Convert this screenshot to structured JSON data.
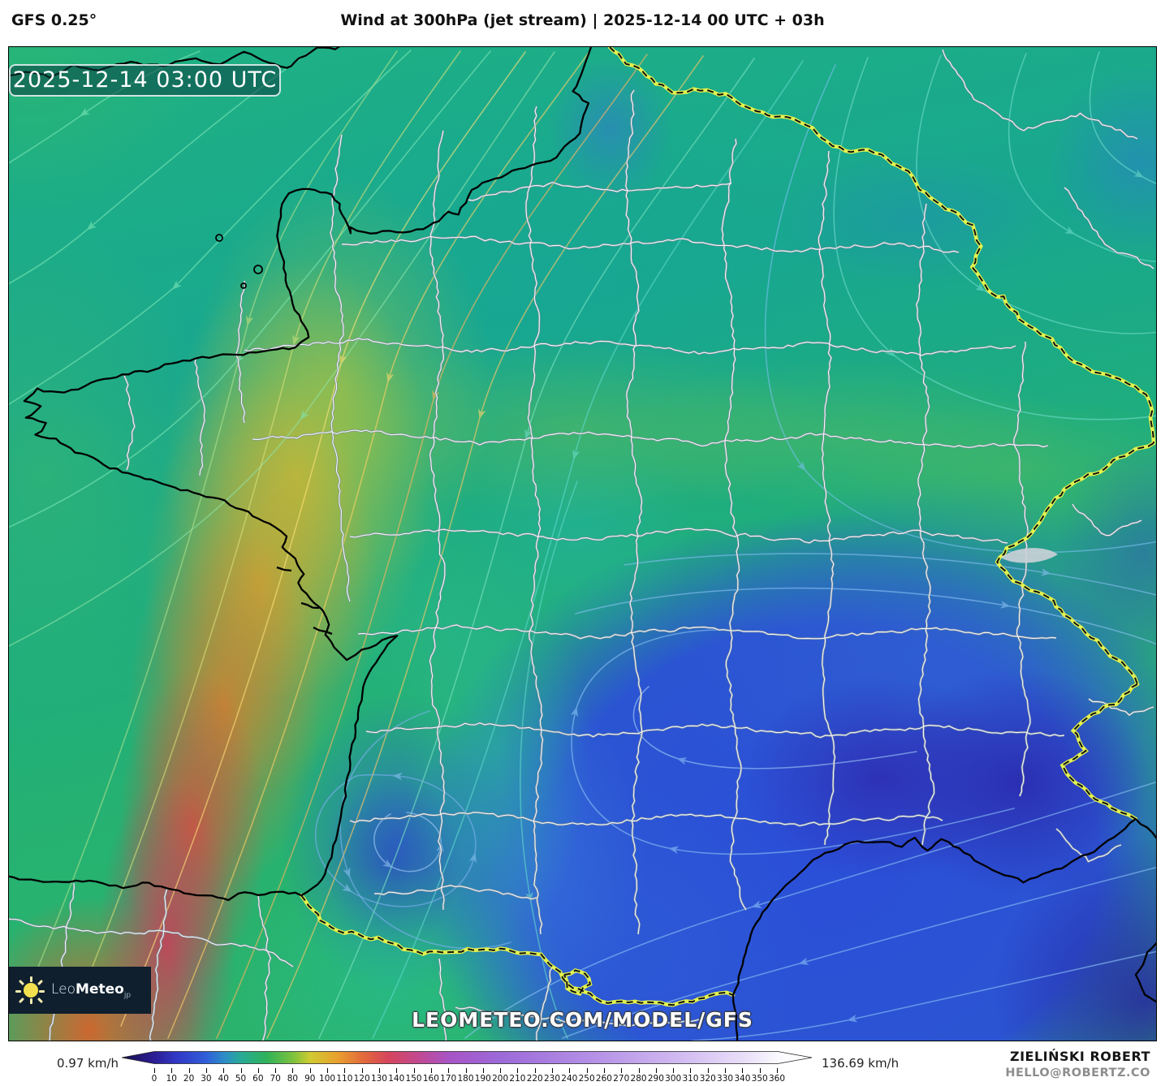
{
  "header": {
    "model_label": "GFS 0.25°",
    "title": "Wind at 300hPa (jet stream) | 2025-12-14 00 UTC + 03h"
  },
  "map": {
    "timestamp": "2025-12-14 03:00 UTC",
    "watermark": "LEOMETEO.COM/MODEL/GFS",
    "logo": {
      "brand_light": "Leo",
      "brand_bold": "Meteo",
      "brand_suffix": "jp"
    }
  },
  "scale": {
    "unit": "km/h",
    "min_label": "0.97 km/h",
    "max_label": "136.69 km/h",
    "ticks": [
      0,
      10,
      20,
      30,
      40,
      50,
      60,
      70,
      80,
      90,
      100,
      110,
      120,
      130,
      140,
      150,
      160,
      170,
      180,
      190,
      200,
      210,
      220,
      230,
      240,
      250,
      260,
      270,
      280,
      290,
      300,
      310,
      320,
      330,
      340,
      350,
      360
    ],
    "colormap": [
      "#2b1d94",
      "#2f5ed8",
      "#27ab96",
      "#30b25a",
      "#7cc23e",
      "#cfcb30",
      "#e9a22f",
      "#e36c3a",
      "#d6455c",
      "#c4488a",
      "#a854c6",
      "#9c6ad8",
      "#b38ee6",
      "#cfb7f0",
      "#e8def8",
      "#ffffff"
    ]
  },
  "credit": {
    "name": "ZIELIŃSKI ROBERT",
    "contact": "HELLO@ROBERTZ.CO"
  }
}
